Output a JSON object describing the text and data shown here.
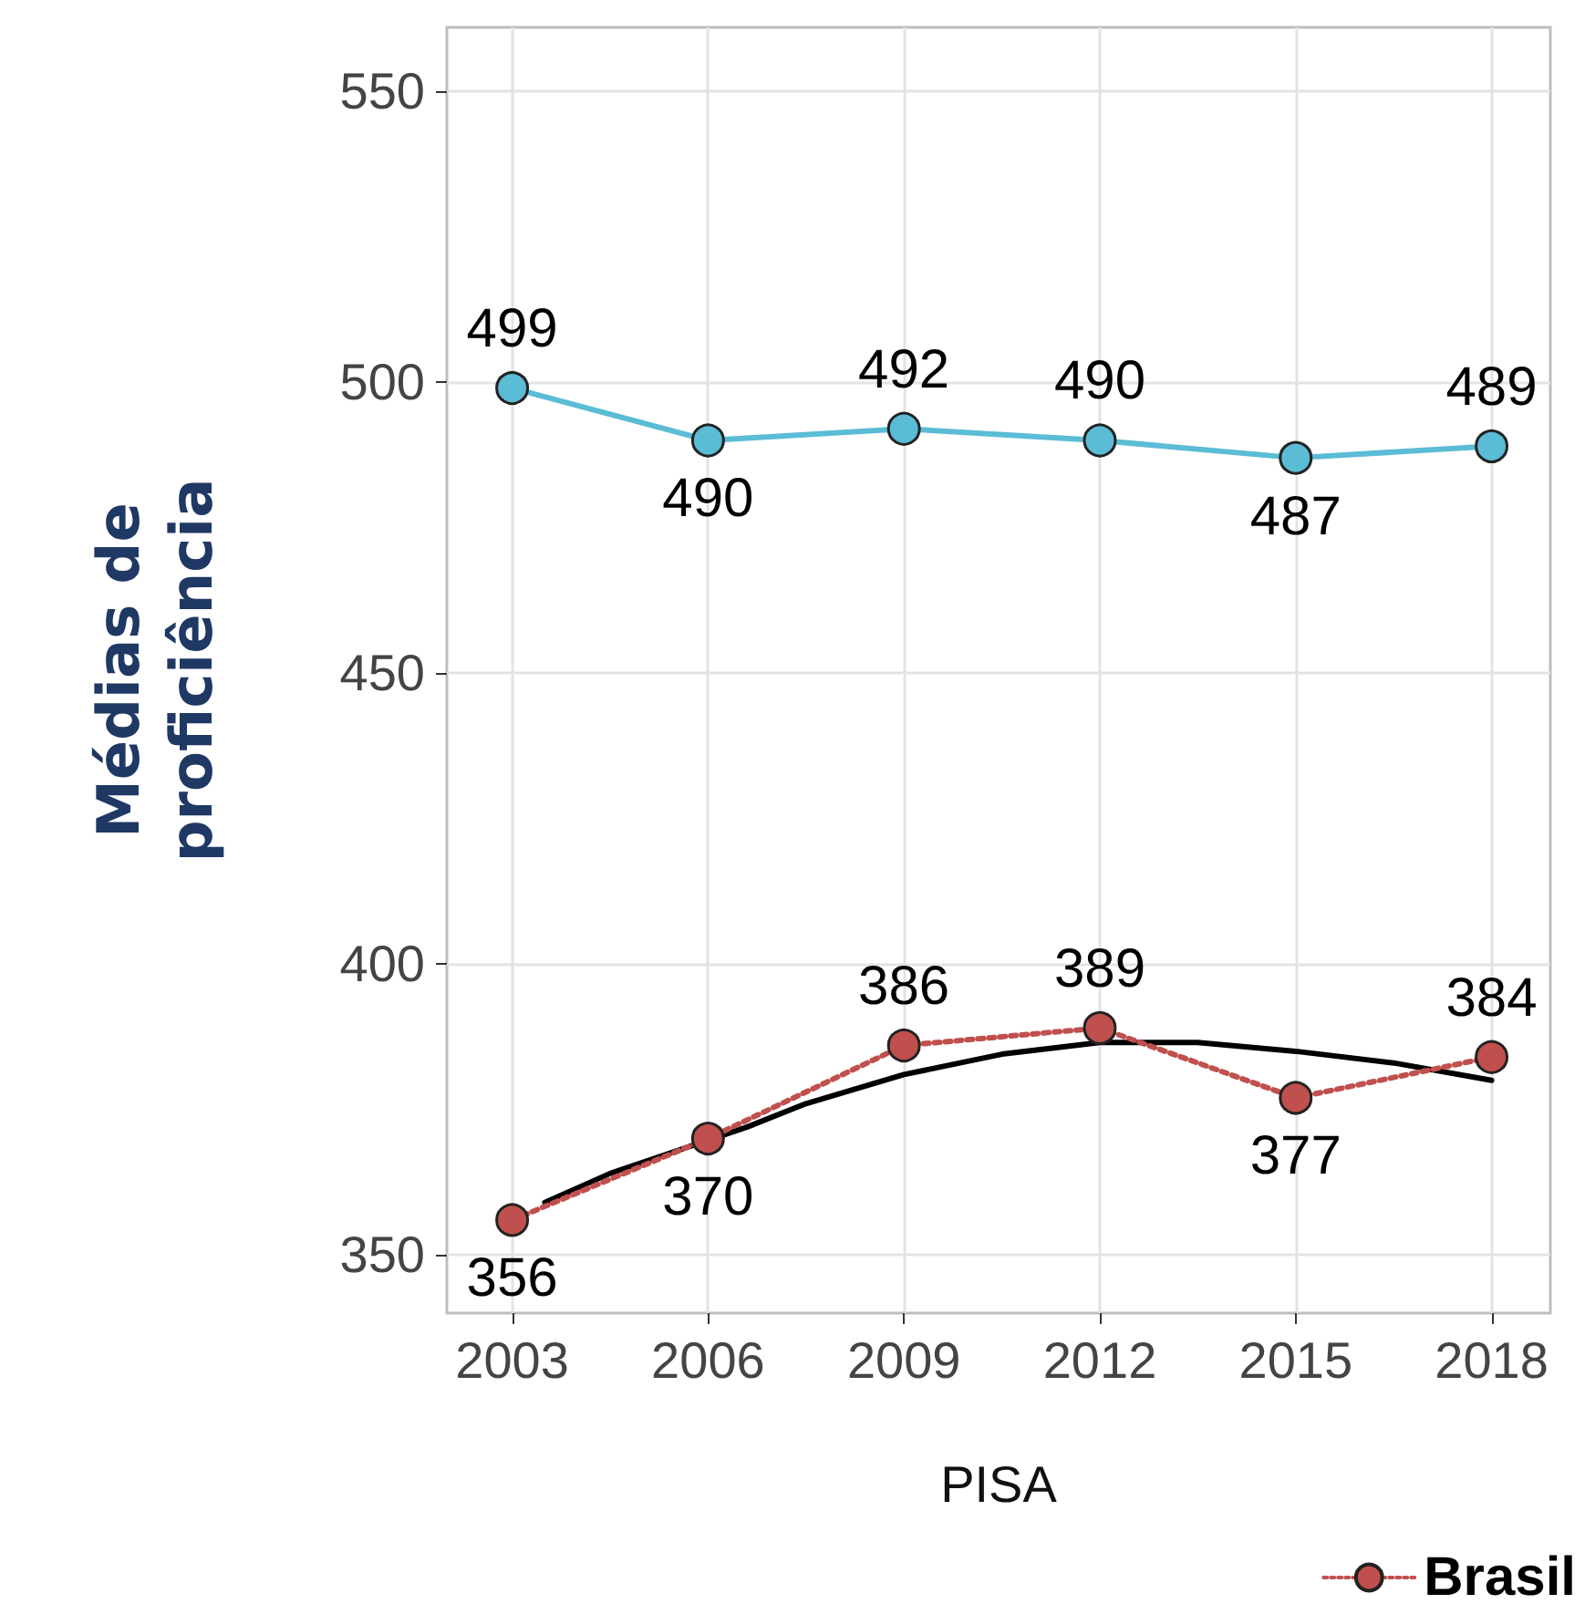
{
  "chart_data": {
    "type": "line",
    "xlabel": "PISA",
    "ylabel": "Médias de\nproficiência",
    "x": [
      2003,
      2006,
      2009,
      2012,
      2015,
      2018
    ],
    "series": [
      {
        "color": "#5bbcd6",
        "values": [
          499,
          490,
          492,
          490,
          487,
          489
        ],
        "line_style": "solid",
        "data_labels": true
      },
      {
        "name": "Brasil",
        "color": "#c0504d",
        "values": [
          356,
          370,
          386,
          389,
          377,
          384
        ],
        "line_style": "dotted",
        "data_labels": true
      },
      {
        "type": "line",
        "color": "#000000",
        "x": [
          2003.5,
          2004.5,
          2006.6,
          2007.5,
          2009,
          2010.5,
          2012,
          2013.5,
          2015,
          2016.5,
          2018
        ],
        "values": [
          359,
          364,
          372,
          376,
          381,
          384.5,
          386.5,
          386.5,
          385,
          383,
          380
        ],
        "line_style": "solid",
        "marker": "none"
      }
    ],
    "xlim": [
      2002,
      2018.9
    ],
    "xticks": [
      2003,
      2006,
      2009,
      2012,
      2015,
      2018
    ],
    "ylim": [
      340,
      561
    ],
    "yticks": [
      350,
      400,
      450,
      500,
      550
    ],
    "grid": true,
    "marker": "circle",
    "legend": "bottom right"
  }
}
